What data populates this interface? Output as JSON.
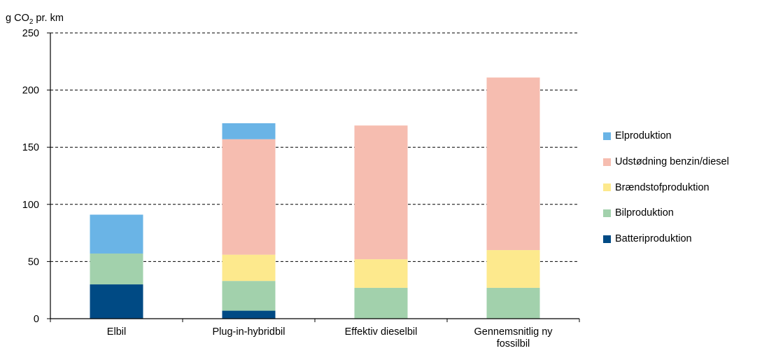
{
  "chart_data": {
    "type": "bar",
    "stacked": true,
    "ylabel_main": "g CO",
    "ylabel_sub": "2",
    "ylabel_rest": " pr. km",
    "ylim": [
      0,
      250
    ],
    "yticks": [
      "0",
      "50",
      "100",
      "150",
      "200",
      "250"
    ],
    "grid": "horizontal dashed",
    "legend_position": "right",
    "categories": [
      [
        "Elbil"
      ],
      [
        "Plug-in-hybridbil"
      ],
      [
        "Effektiv dieselbil"
      ],
      [
        "Gennemsnitlig ny",
        "fossilbil"
      ]
    ],
    "series": [
      {
        "name": "Batteriproduktion",
        "color": "#004a84",
        "values": [
          30,
          7,
          0,
          0
        ]
      },
      {
        "name": "Bilproduktion",
        "color": "#a2d1ac",
        "values": [
          27,
          26,
          27,
          27
        ]
      },
      {
        "name": "Brændstofproduktion",
        "color": "#fde98d",
        "values": [
          0,
          23,
          25,
          33
        ]
      },
      {
        "name": "Udstødning benzin/diesel",
        "color": "#f6bdb0",
        "values": [
          0,
          101,
          117,
          151
        ]
      },
      {
        "name": "Elproduktion",
        "color": "#6ab4e6",
        "values": [
          34,
          14,
          0,
          0
        ]
      }
    ]
  }
}
